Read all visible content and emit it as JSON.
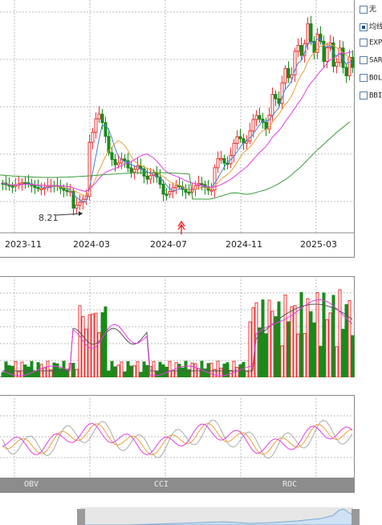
{
  "x_axis": {
    "labels": [
      "2023-11",
      "2024-03",
      "2024-07",
      "2024-11",
      "2025-03"
    ]
  },
  "annotation": {
    "low_price": "8.21"
  },
  "legend": {
    "items": [
      {
        "label": "无",
        "checked": false
      },
      {
        "label": "均线",
        "checked": true
      },
      {
        "label": "EXPMA",
        "checked": false
      },
      {
        "label": "SAR",
        "checked": false
      },
      {
        "label": "BOLL",
        "checked": false
      },
      {
        "label": "BBI",
        "checked": false
      }
    ]
  },
  "indicators": {
    "tabs": [
      "OBV",
      "CCI",
      "ROC"
    ]
  },
  "colors": {
    "up": "#e33",
    "down": "#1a8a1a",
    "ma5": "#4a7fd8",
    "ma10": "#e8a23a",
    "ma20": "#e63ce6",
    "ma60": "#3a9a3a",
    "osc1": "#aaa",
    "osc2": "#e8a23a",
    "osc3": "#e63ce6"
  }
}
